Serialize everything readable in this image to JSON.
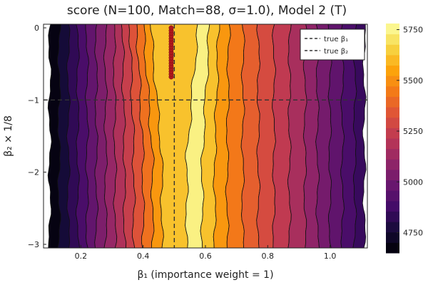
{
  "chart_data": {
    "type": "heatmap",
    "title": "score (N=100, Match=88, σ=1.0), Model 2 (T)",
    "xlabel": "β₁ (importance weight = 1)",
    "ylabel": "β₂ × 1/8",
    "xlim": [
      0.08,
      1.12
    ],
    "ylim": [
      -3.05,
      0.05
    ],
    "x_ticks": [
      {
        "value": 0.2,
        "label": "0.2"
      },
      {
        "value": 0.4,
        "label": "0.4"
      },
      {
        "value": 0.6,
        "label": "0.6"
      },
      {
        "value": 0.8,
        "label": "0.8"
      },
      {
        "value": 1.0,
        "label": "1.0"
      }
    ],
    "y_ticks": [
      {
        "value": 0,
        "label": "0"
      },
      {
        "value": -1,
        "label": "−1"
      },
      {
        "value": -2,
        "label": "−2"
      },
      {
        "value": -3,
        "label": "−3"
      }
    ],
    "colorbar": {
      "min": 4650,
      "max": 5780,
      "colormap": "inferno",
      "ticks": [
        {
          "value": 4750,
          "label": "4750"
        },
        {
          "value": 5000,
          "label": "5000"
        },
        {
          "value": 5250,
          "label": "5250"
        },
        {
          "value": 5500,
          "label": "5500"
        },
        {
          "value": 5750,
          "label": "5750"
        }
      ]
    },
    "contour_bands_x": [
      0.1,
      0.13,
      0.16,
      0.19,
      0.22,
      0.25,
      0.28,
      0.31,
      0.34,
      0.37,
      0.4,
      0.43,
      0.46,
      0.54,
      0.59,
      0.63,
      0.67,
      0.72,
      0.77,
      0.82,
      0.87,
      0.92,
      0.96,
      1.0,
      1.04,
      1.08,
      1.11
    ],
    "contour_band_scores": [
      4680,
      4760,
      4830,
      4900,
      4970,
      5040,
      5110,
      5180,
      5250,
      5330,
      5420,
      5520,
      5620,
      5740,
      5620,
      5520,
      5440,
      5370,
      5300,
      5230,
      5160,
      5090,
      5020,
      4960,
      4900,
      4850
    ],
    "true_beta1": 0.5,
    "true_beta2": -1.0,
    "estimates": {
      "x": 0.49,
      "y_range": [
        -0.68,
        0.0
      ]
    },
    "legend": {
      "placement": "top-right",
      "entries": [
        "true β₁",
        "true β₂"
      ]
    },
    "colors": {
      "reference_line": "#333333",
      "estimate_marker": "#b0181c"
    }
  }
}
